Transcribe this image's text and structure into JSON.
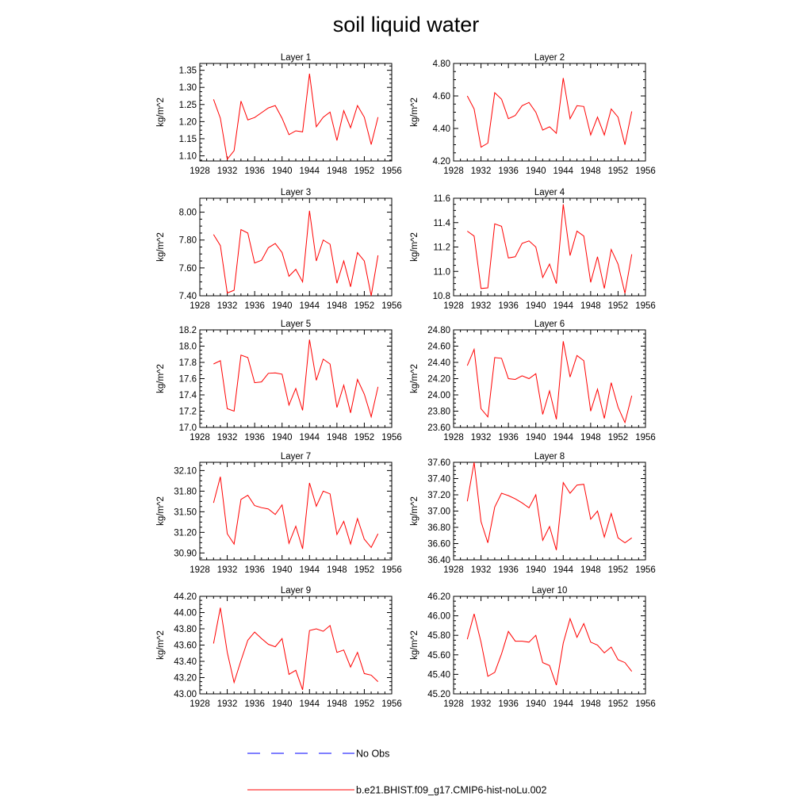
{
  "title": "soil liquid water",
  "colors": {
    "model": "#ff0000",
    "obs": "#0000ff",
    "axis": "#000000"
  },
  "legend": [
    {
      "label": "No Obs",
      "style": "dashed",
      "color": "#0000ff"
    },
    {
      "label": "b.e21.BHIST.f09_g17.CMIP6-hist-noLu.002",
      "style": "solid",
      "color": "#ff0000"
    }
  ],
  "chart_data": [
    {
      "type": "line",
      "title": "Layer 1",
      "ylabel": "kg/m^2",
      "xlim": [
        1928,
        1956
      ],
      "xticks": [
        "1928",
        "1932",
        "1936",
        "1940",
        "1944",
        "1948",
        "1952",
        "1956"
      ],
      "ylim": [
        1.085,
        1.37
      ],
      "yticks": [
        "1.10",
        "1.15",
        "1.20",
        "1.25",
        "1.30",
        "1.35"
      ],
      "series": [
        {
          "x": [
            1930,
            1931,
            1932,
            1933,
            1934,
            1935,
            1936,
            1937,
            1938,
            1939,
            1940,
            1941,
            1942,
            1943,
            1944,
            1945,
            1946,
            1947,
            1948,
            1949,
            1950,
            1951,
            1952,
            1953,
            1954
          ],
          "values": [
            1.265,
            1.21,
            1.09,
            1.115,
            1.26,
            1.205,
            1.212,
            1.226,
            1.24,
            1.247,
            1.21,
            1.162,
            1.173,
            1.17,
            1.34,
            1.185,
            1.213,
            1.228,
            1.145,
            1.232,
            1.182,
            1.247,
            1.213,
            1.133,
            1.213
          ]
        }
      ]
    },
    {
      "type": "line",
      "title": "Layer 2",
      "ylabel": "kg/m^2",
      "xlim": [
        1928,
        1956
      ],
      "xticks": [
        "1928",
        "1932",
        "1936",
        "1940",
        "1944",
        "1948",
        "1952",
        "1956"
      ],
      "ylim": [
        4.2,
        4.8
      ],
      "yticks": [
        "4.20",
        "4.40",
        "4.60",
        "4.80"
      ],
      "series": [
        {
          "x": [
            1930,
            1931,
            1932,
            1933,
            1934,
            1935,
            1936,
            1937,
            1938,
            1939,
            1940,
            1941,
            1942,
            1943,
            1944,
            1945,
            1946,
            1947,
            1948,
            1949,
            1950,
            1951,
            1952,
            1953,
            1954
          ],
          "values": [
            4.6,
            4.52,
            4.285,
            4.31,
            4.62,
            4.58,
            4.46,
            4.48,
            4.54,
            4.56,
            4.5,
            4.39,
            4.41,
            4.37,
            4.71,
            4.46,
            4.54,
            4.535,
            4.36,
            4.47,
            4.36,
            4.52,
            4.47,
            4.3,
            4.505
          ]
        }
      ]
    },
    {
      "type": "line",
      "title": "Layer 3",
      "ylabel": "kg/m^2",
      "xlim": [
        1928,
        1956
      ],
      "xticks": [
        "1928",
        "1932",
        "1936",
        "1940",
        "1944",
        "1948",
        "1952",
        "1956"
      ],
      "ylim": [
        7.4,
        8.1
      ],
      "yticks": [
        "7.40",
        "7.60",
        "7.80",
        "8.00"
      ],
      "series": [
        {
          "x": [
            1930,
            1931,
            1932,
            1933,
            1934,
            1935,
            1936,
            1937,
            1938,
            1939,
            1940,
            1941,
            1942,
            1943,
            1944,
            1945,
            1946,
            1947,
            1948,
            1949,
            1950,
            1951,
            1952,
            1953,
            1954
          ],
          "values": [
            7.84,
            7.76,
            7.42,
            7.44,
            7.875,
            7.85,
            7.635,
            7.655,
            7.745,
            7.775,
            7.71,
            7.54,
            7.59,
            7.5,
            8.01,
            7.65,
            7.8,
            7.77,
            7.49,
            7.65,
            7.465,
            7.71,
            7.65,
            7.4,
            7.69
          ]
        }
      ]
    },
    {
      "type": "line",
      "title": "Layer 4",
      "ylabel": "kg/m^2",
      "xlim": [
        1928,
        1956
      ],
      "xticks": [
        "1928",
        "1932",
        "1936",
        "1940",
        "1944",
        "1948",
        "1952",
        "1956"
      ],
      "ylim": [
        10.8,
        11.6
      ],
      "yticks": [
        "10.8",
        "11.0",
        "11.2",
        "11.4",
        "11.6"
      ],
      "series": [
        {
          "x": [
            1930,
            1931,
            1932,
            1933,
            1934,
            1935,
            1936,
            1937,
            1938,
            1939,
            1940,
            1941,
            1942,
            1943,
            1944,
            1945,
            1946,
            1947,
            1948,
            1949,
            1950,
            1951,
            1952,
            1953,
            1954
          ],
          "values": [
            11.33,
            11.29,
            10.86,
            10.865,
            11.39,
            11.37,
            11.11,
            11.12,
            11.23,
            11.25,
            11.2,
            10.95,
            11.06,
            10.9,
            11.55,
            11.13,
            11.33,
            11.29,
            10.91,
            11.12,
            10.86,
            11.18,
            11.06,
            10.82,
            11.14
          ]
        }
      ]
    },
    {
      "type": "line",
      "title": "Layer 5",
      "ylabel": "kg/m^2",
      "xlim": [
        1928,
        1956
      ],
      "xticks": [
        "1928",
        "1932",
        "1936",
        "1940",
        "1944",
        "1948",
        "1952",
        "1956"
      ],
      "ylim": [
        17.0,
        18.2
      ],
      "yticks": [
        "17.0",
        "17.2",
        "17.4",
        "17.6",
        "17.8",
        "18.0",
        "18.2"
      ],
      "series": [
        {
          "x": [
            1930,
            1931,
            1932,
            1933,
            1934,
            1935,
            1936,
            1937,
            1938,
            1939,
            1940,
            1941,
            1942,
            1943,
            1944,
            1945,
            1946,
            1947,
            1948,
            1949,
            1950,
            1951,
            1952,
            1953,
            1954
          ],
          "values": [
            17.78,
            17.82,
            17.23,
            17.2,
            17.89,
            17.86,
            17.55,
            17.56,
            17.665,
            17.67,
            17.655,
            17.275,
            17.48,
            17.21,
            18.08,
            17.58,
            17.84,
            17.78,
            17.245,
            17.52,
            17.18,
            17.59,
            17.41,
            17.13,
            17.5
          ]
        }
      ]
    },
    {
      "type": "line",
      "title": "Layer 6",
      "ylabel": "kg/m^2",
      "xlim": [
        1928,
        1956
      ],
      "xticks": [
        "1928",
        "1932",
        "1936",
        "1940",
        "1944",
        "1948",
        "1952",
        "1956"
      ],
      "ylim": [
        23.6,
        24.8
      ],
      "yticks": [
        "23.60",
        "23.80",
        "24.00",
        "24.20",
        "24.40",
        "24.60",
        "24.80"
      ],
      "series": [
        {
          "x": [
            1930,
            1931,
            1932,
            1933,
            1934,
            1935,
            1936,
            1937,
            1938,
            1939,
            1940,
            1941,
            1942,
            1943,
            1944,
            1945,
            1946,
            1947,
            1948,
            1949,
            1950,
            1951,
            1952,
            1953,
            1954
          ],
          "values": [
            24.36,
            24.56,
            23.83,
            23.73,
            24.46,
            24.45,
            24.2,
            24.19,
            24.235,
            24.2,
            24.26,
            23.76,
            24.05,
            23.7,
            24.66,
            24.22,
            24.485,
            24.42,
            23.8,
            24.07,
            23.71,
            24.15,
            23.85,
            23.66,
            23.99
          ]
        }
      ]
    },
    {
      "type": "line",
      "title": "Layer 7",
      "ylabel": "kg/m^2",
      "xlim": [
        1928,
        1956
      ],
      "xticks": [
        "1928",
        "1932",
        "1936",
        "1940",
        "1944",
        "1948",
        "1952",
        "1956"
      ],
      "ylim": [
        30.8,
        32.22
      ],
      "yticks": [
        "30.90",
        "31.20",
        "31.50",
        "31.80",
        "32.10"
      ],
      "series": [
        {
          "x": [
            1930,
            1931,
            1932,
            1933,
            1934,
            1935,
            1936,
            1937,
            1938,
            1939,
            1940,
            1941,
            1942,
            1943,
            1944,
            1945,
            1946,
            1947,
            1948,
            1949,
            1950,
            1951,
            1952,
            1953,
            1954
          ],
          "values": [
            31.63,
            32.01,
            31.18,
            31.03,
            31.68,
            31.74,
            31.59,
            31.56,
            31.54,
            31.46,
            31.6,
            31.04,
            31.29,
            30.96,
            31.92,
            31.58,
            31.8,
            31.76,
            31.17,
            31.36,
            31.03,
            31.4,
            31.1,
            30.98,
            31.18
          ]
        }
      ]
    },
    {
      "type": "line",
      "title": "Layer 8",
      "ylabel": "kg/m^2",
      "xlim": [
        1928,
        1956
      ],
      "xticks": [
        "1928",
        "1932",
        "1936",
        "1940",
        "1944",
        "1948",
        "1952",
        "1956"
      ],
      "ylim": [
        36.4,
        37.6
      ],
      "yticks": [
        "36.40",
        "36.60",
        "36.80",
        "37.00",
        "37.20",
        "37.40",
        "37.60"
      ],
      "series": [
        {
          "x": [
            1930,
            1931,
            1932,
            1933,
            1934,
            1935,
            1936,
            1937,
            1938,
            1939,
            1940,
            1941,
            1942,
            1943,
            1944,
            1945,
            1946,
            1947,
            1948,
            1949,
            1950,
            1951,
            1952,
            1953,
            1954
          ],
          "values": [
            37.12,
            37.6,
            36.87,
            36.61,
            37.05,
            37.22,
            37.19,
            37.15,
            37.1,
            37.04,
            37.2,
            36.64,
            36.81,
            36.52,
            37.35,
            37.22,
            37.32,
            37.33,
            36.9,
            37.0,
            36.68,
            36.97,
            36.67,
            36.61,
            36.67
          ]
        }
      ]
    },
    {
      "type": "line",
      "title": "Layer 9",
      "ylabel": "kg/m^2",
      "xlim": [
        1928,
        1956
      ],
      "xticks": [
        "1928",
        "1932",
        "1936",
        "1940",
        "1944",
        "1948",
        "1952",
        "1956"
      ],
      "ylim": [
        43.0,
        44.2
      ],
      "yticks": [
        "43.00",
        "43.20",
        "43.40",
        "43.60",
        "43.80",
        "44.00",
        "44.20"
      ],
      "series": [
        {
          "x": [
            1930,
            1931,
            1932,
            1933,
            1934,
            1935,
            1936,
            1937,
            1938,
            1939,
            1940,
            1941,
            1942,
            1943,
            1944,
            1945,
            1946,
            1947,
            1948,
            1949,
            1950,
            1951,
            1952,
            1953,
            1954
          ],
          "values": [
            43.62,
            44.06,
            43.51,
            43.14,
            43.41,
            43.66,
            43.76,
            43.68,
            43.61,
            43.58,
            43.68,
            43.24,
            43.29,
            43.05,
            43.78,
            43.8,
            43.77,
            43.84,
            43.51,
            43.54,
            43.33,
            43.51,
            43.25,
            43.23,
            43.15
          ]
        }
      ]
    },
    {
      "type": "line",
      "title": "Layer 10",
      "ylabel": "kg/m^2",
      "xlim": [
        1928,
        1956
      ],
      "xticks": [
        "1928",
        "1932",
        "1936",
        "1940",
        "1944",
        "1948",
        "1952",
        "1956"
      ],
      "ylim": [
        45.2,
        46.2
      ],
      "yticks": [
        "45.20",
        "45.40",
        "45.60",
        "45.80",
        "46.00",
        "46.20"
      ],
      "series": [
        {
          "x": [
            1930,
            1931,
            1932,
            1933,
            1934,
            1935,
            1936,
            1937,
            1938,
            1939,
            1940,
            1941,
            1942,
            1943,
            1944,
            1945,
            1946,
            1947,
            1948,
            1949,
            1950,
            1951,
            1952,
            1953,
            1954
          ],
          "values": [
            45.76,
            46.02,
            45.73,
            45.38,
            45.42,
            45.61,
            45.84,
            45.74,
            45.74,
            45.73,
            45.8,
            45.52,
            45.49,
            45.29,
            45.72,
            45.97,
            45.78,
            45.92,
            45.73,
            45.7,
            45.62,
            45.68,
            45.55,
            45.52,
            45.43
          ]
        }
      ]
    }
  ]
}
